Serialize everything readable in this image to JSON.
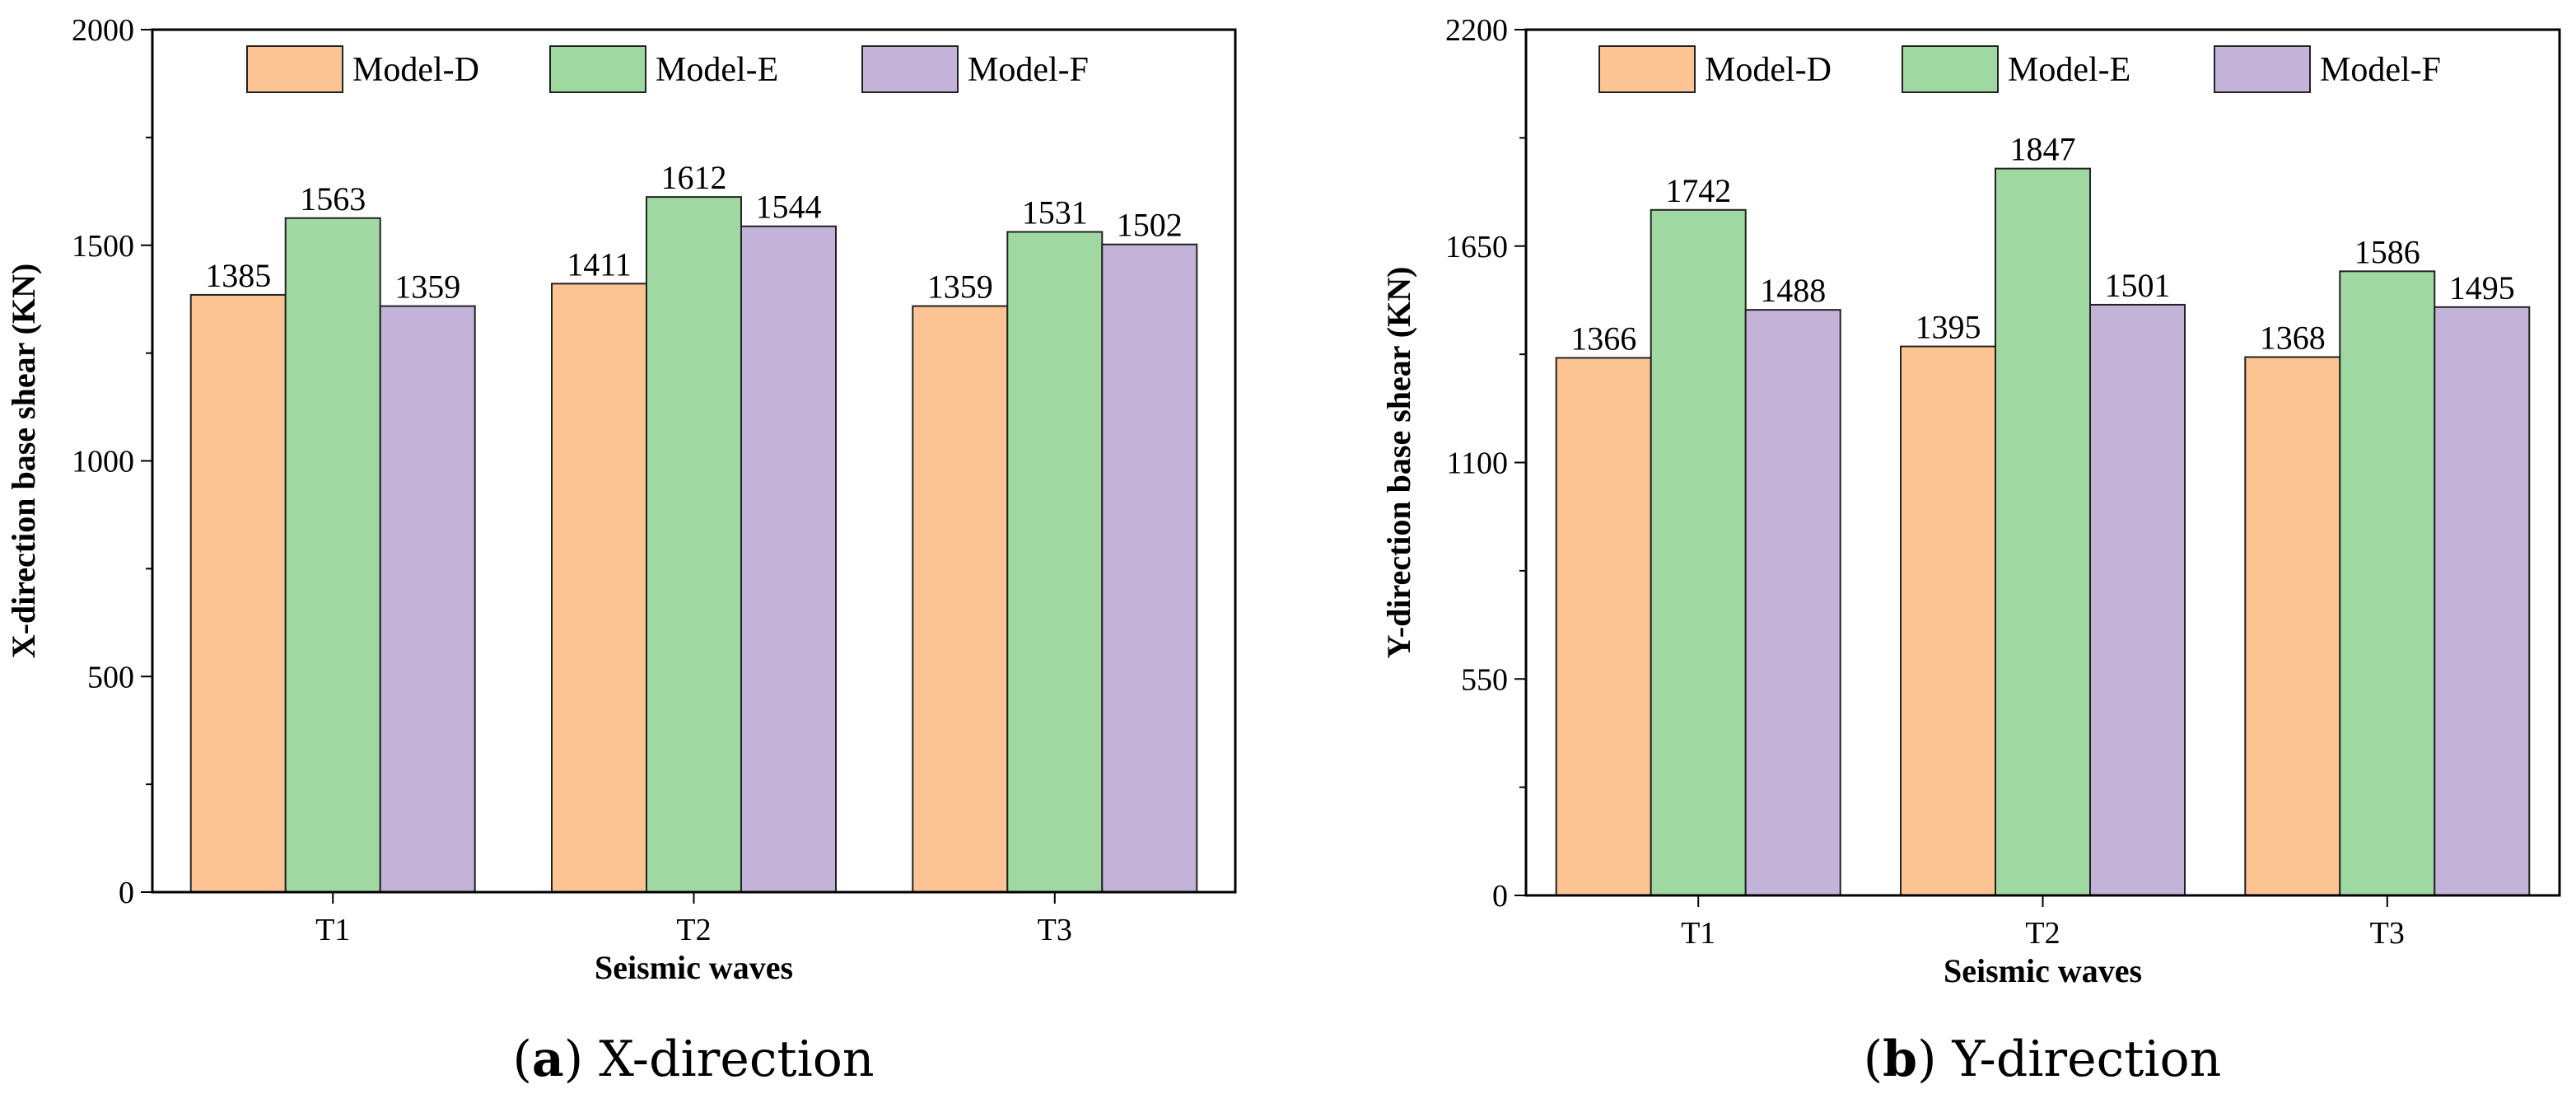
{
  "chart_data": [
    {
      "type": "bar",
      "caption_letter": "a",
      "caption_text": "X-direction",
      "categories": [
        "T1",
        "T2",
        "T3"
      ],
      "series": [
        {
          "name": "Model-D",
          "values": [
            1385,
            1411,
            1359
          ]
        },
        {
          "name": "Model-E",
          "values": [
            1563,
            1612,
            1531
          ]
        },
        {
          "name": "Model-F",
          "values": [
            1359,
            1544,
            1502
          ]
        }
      ],
      "xlabel": "Seismic waves",
      "ylabel": "X-direction base shear (KN)",
      "ylim": [
        0,
        2000
      ],
      "yticks": [
        0,
        500,
        1000,
        1500,
        2000
      ],
      "legend_position": "top"
    },
    {
      "type": "bar",
      "caption_letter": "b",
      "caption_text": "Y-direction",
      "categories": [
        "T1",
        "T2",
        "T3"
      ],
      "series": [
        {
          "name": "Model-D",
          "values": [
            1366,
            1395,
            1368
          ]
        },
        {
          "name": "Model-E",
          "values": [
            1742,
            1847,
            1586
          ]
        },
        {
          "name": "Model-F",
          "values": [
            1488,
            1501,
            1495
          ]
        }
      ],
      "xlabel": "Seismic waves",
      "ylabel": "Y-direction base shear (KN)",
      "ylim": [
        0,
        2200
      ],
      "yticks": [
        0,
        550,
        1100,
        1650,
        2200
      ],
      "legend_position": "top"
    }
  ],
  "colors": {
    "Model-D": "#fcc493",
    "Model-E": "#9fd9a1",
    "Model-F": "#c4b3d8"
  }
}
